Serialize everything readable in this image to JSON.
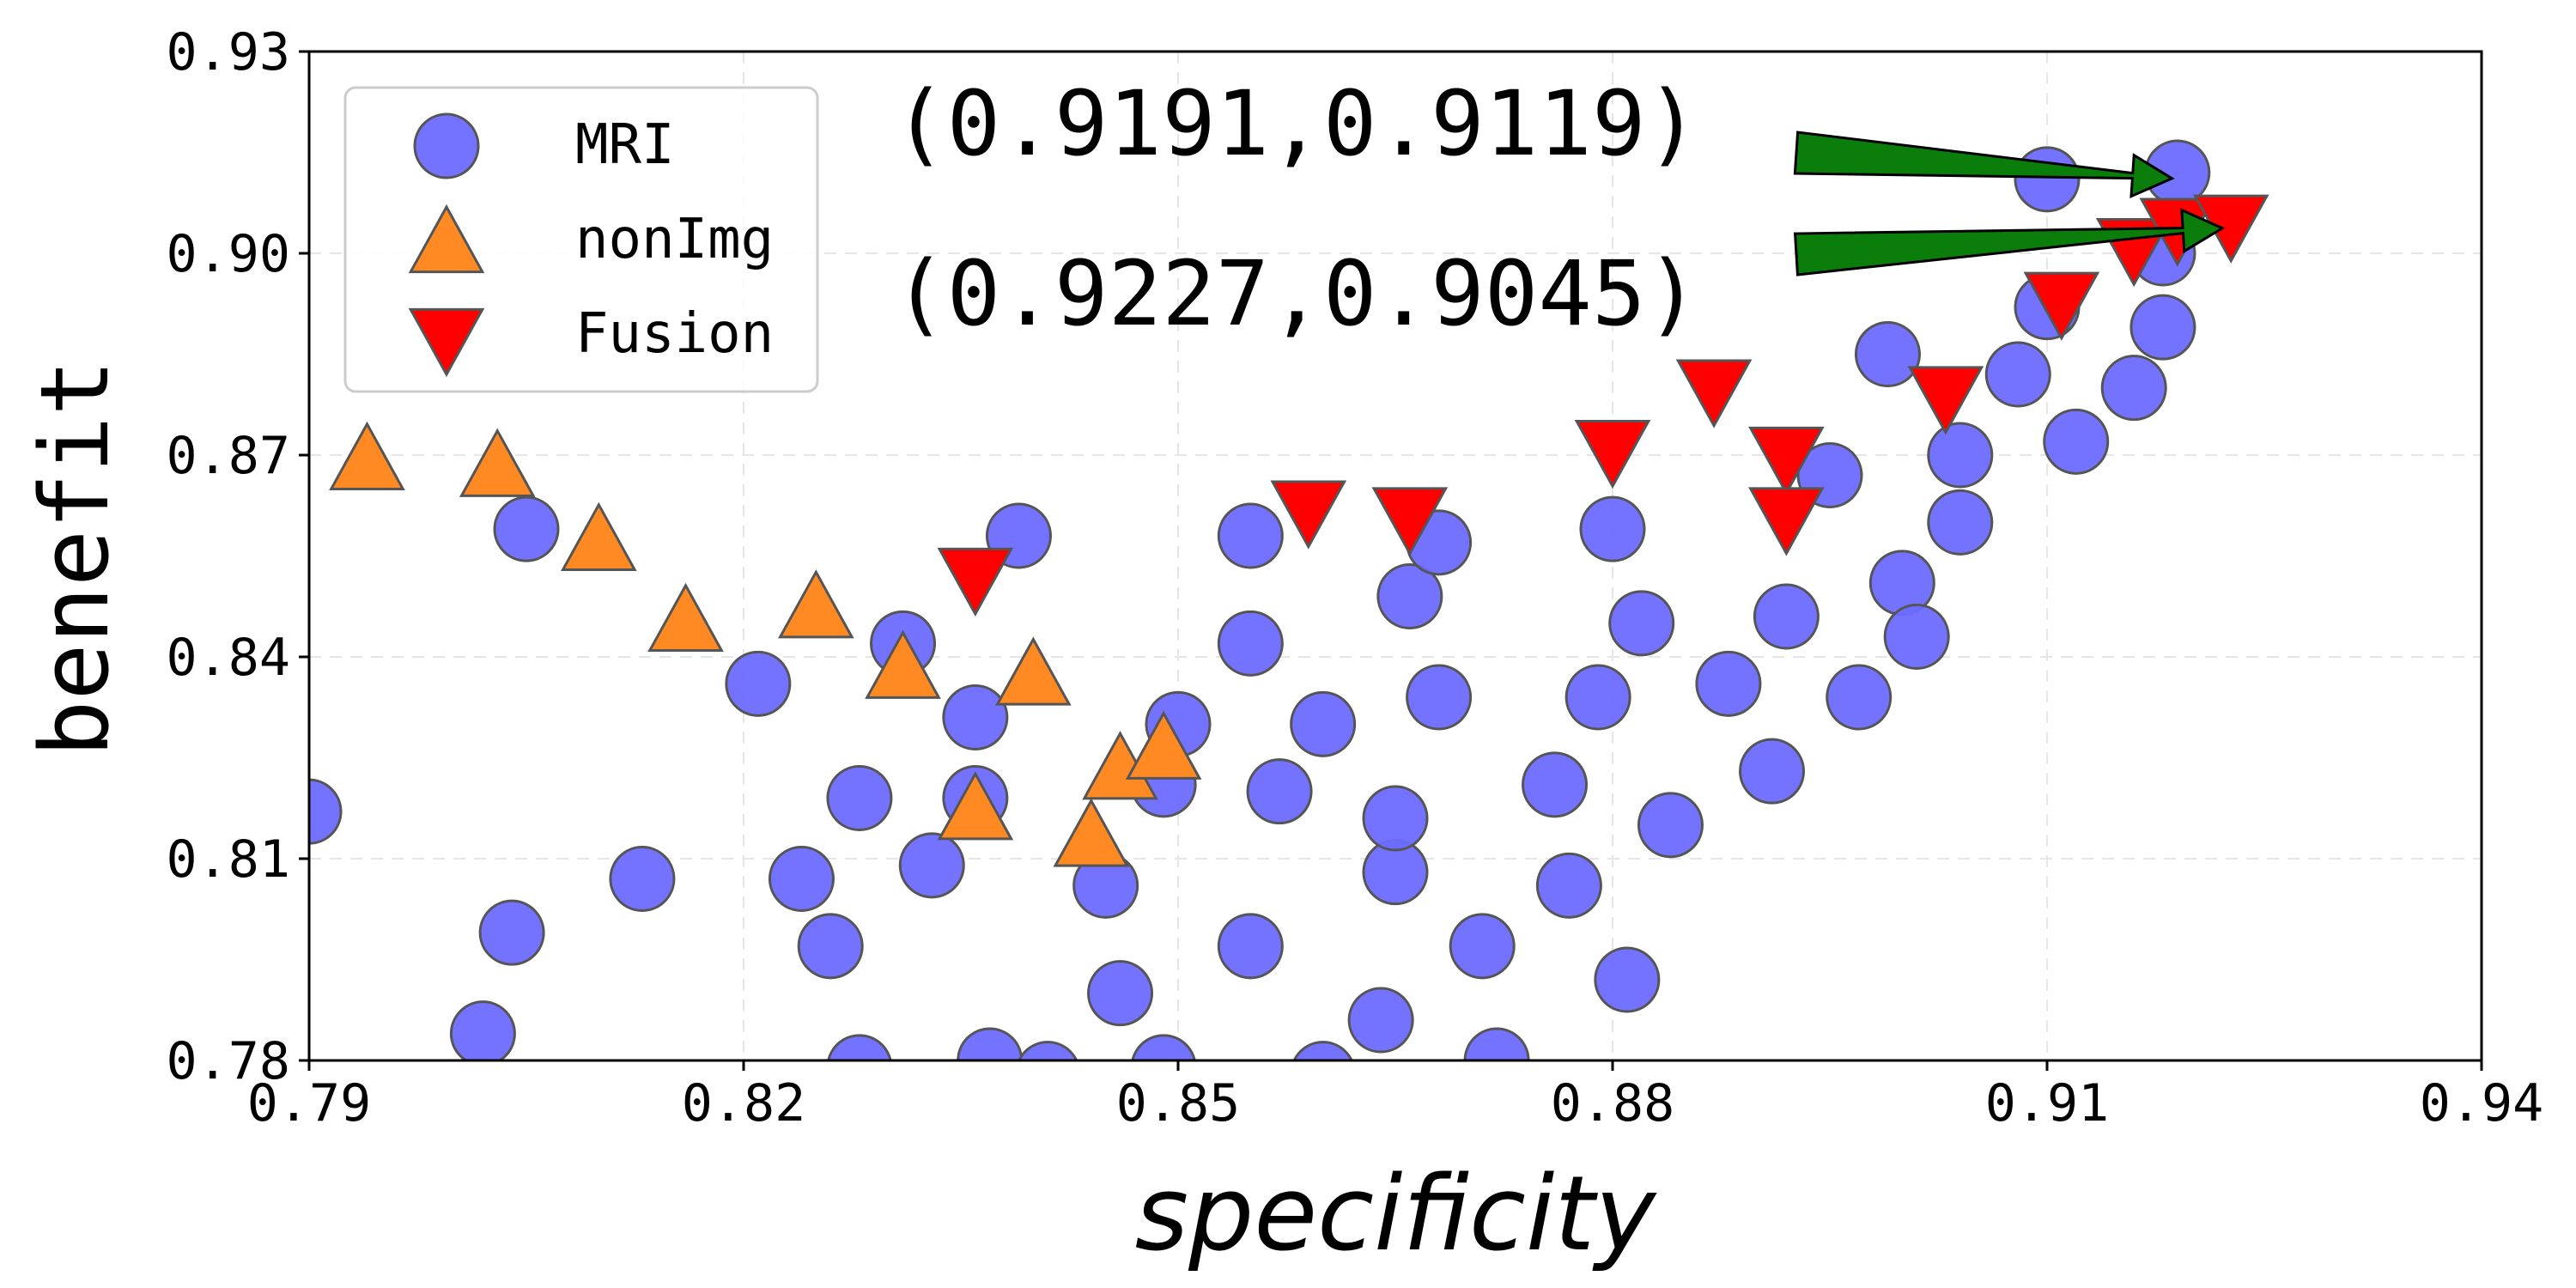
{
  "chart_data": {
    "type": "scatter",
    "xlabel": "specificity",
    "ylabel": "benefit",
    "xlim": [
      0.79,
      0.94
    ],
    "ylim": [
      0.78,
      0.93
    ],
    "xticks": [
      "0.79",
      "0.82",
      "0.85",
      "0.88",
      "0.91",
      "0.94"
    ],
    "yticks": [
      "0.78",
      "0.81",
      "0.84",
      "0.87",
      "0.90",
      "0.93"
    ],
    "grid": true,
    "legend_position": "top-left",
    "series": [
      {
        "name": "MRI",
        "marker": "circle",
        "color": "#6b6bff",
        "points": [
          [
            0.79,
            0.817
          ],
          [
            0.802,
            0.784
          ],
          [
            0.804,
            0.799
          ],
          [
            0.805,
            0.859
          ],
          [
            0.813,
            0.807
          ],
          [
            0.821,
            0.836
          ],
          [
            0.824,
            0.807
          ],
          [
            0.826,
            0.797
          ],
          [
            0.828,
            0.819
          ],
          [
            0.828,
            0.779
          ],
          [
            0.831,
            0.842
          ],
          [
            0.833,
            0.809
          ],
          [
            0.836,
            0.819
          ],
          [
            0.836,
            0.831
          ],
          [
            0.837,
            0.78
          ],
          [
            0.839,
            0.858
          ],
          [
            0.841,
            0.778
          ],
          [
            0.845,
            0.806
          ],
          [
            0.846,
            0.79
          ],
          [
            0.849,
            0.821
          ],
          [
            0.849,
            0.779
          ],
          [
            0.85,
            0.83
          ],
          [
            0.855,
            0.797
          ],
          [
            0.855,
            0.842
          ],
          [
            0.855,
            0.858
          ],
          [
            0.857,
            0.82
          ],
          [
            0.86,
            0.83
          ],
          [
            0.86,
            0.778
          ],
          [
            0.864,
            0.786
          ],
          [
            0.865,
            0.808
          ],
          [
            0.865,
            0.816
          ],
          [
            0.866,
            0.849
          ],
          [
            0.868,
            0.834
          ],
          [
            0.868,
            0.857
          ],
          [
            0.871,
            0.797
          ],
          [
            0.872,
            0.78
          ],
          [
            0.876,
            0.821
          ],
          [
            0.877,
            0.806
          ],
          [
            0.879,
            0.834
          ],
          [
            0.88,
            0.859
          ],
          [
            0.881,
            0.792
          ],
          [
            0.882,
            0.845
          ],
          [
            0.884,
            0.815
          ],
          [
            0.888,
            0.836
          ],
          [
            0.891,
            0.823
          ],
          [
            0.892,
            0.846
          ],
          [
            0.895,
            0.867
          ],
          [
            0.897,
            0.834
          ],
          [
            0.899,
            0.885
          ],
          [
            0.9,
            0.851
          ],
          [
            0.901,
            0.843
          ],
          [
            0.904,
            0.86
          ],
          [
            0.904,
            0.87
          ],
          [
            0.908,
            0.882
          ],
          [
            0.91,
            0.911
          ],
          [
            0.91,
            0.892
          ],
          [
            0.912,
            0.872
          ],
          [
            0.916,
            0.88
          ],
          [
            0.918,
            0.889
          ],
          [
            0.918,
            0.9
          ],
          [
            0.919,
            0.912
          ]
        ]
      },
      {
        "name": "nonImg",
        "marker": "triangle-up",
        "color": "#ff8a24",
        "points": [
          [
            0.794,
            0.869
          ],
          [
            0.803,
            0.868
          ],
          [
            0.81,
            0.857
          ],
          [
            0.816,
            0.845
          ],
          [
            0.825,
            0.847
          ],
          [
            0.831,
            0.838
          ],
          [
            0.836,
            0.817
          ],
          [
            0.84,
            0.837
          ],
          [
            0.844,
            0.813
          ],
          [
            0.846,
            0.823
          ],
          [
            0.849,
            0.826
          ]
        ]
      },
      {
        "name": "Fusion",
        "marker": "triangle-down",
        "color": "#ff0000",
        "points": [
          [
            0.836,
            0.852
          ],
          [
            0.859,
            0.862
          ],
          [
            0.866,
            0.861
          ],
          [
            0.88,
            0.871
          ],
          [
            0.887,
            0.88
          ],
          [
            0.892,
            0.87
          ],
          [
            0.892,
            0.861
          ],
          [
            0.903,
            0.879
          ],
          [
            0.911,
            0.893
          ],
          [
            0.916,
            0.901
          ],
          [
            0.919,
            0.904
          ],
          [
            0.9227,
            0.9045
          ]
        ]
      }
    ],
    "annotations": [
      {
        "text": "(0.9191,0.9119)",
        "x": 0.9191,
        "y": 0.9119
      },
      {
        "text": "(0.9227,0.9045)",
        "x": 0.9227,
        "y": 0.9045
      }
    ]
  },
  "colors": {
    "mri": "#6b6bff",
    "nonimg": "#ff8a24",
    "fusion": "#ff0000",
    "arrow": "#0a7d0a",
    "marker_edge": "#555555"
  }
}
